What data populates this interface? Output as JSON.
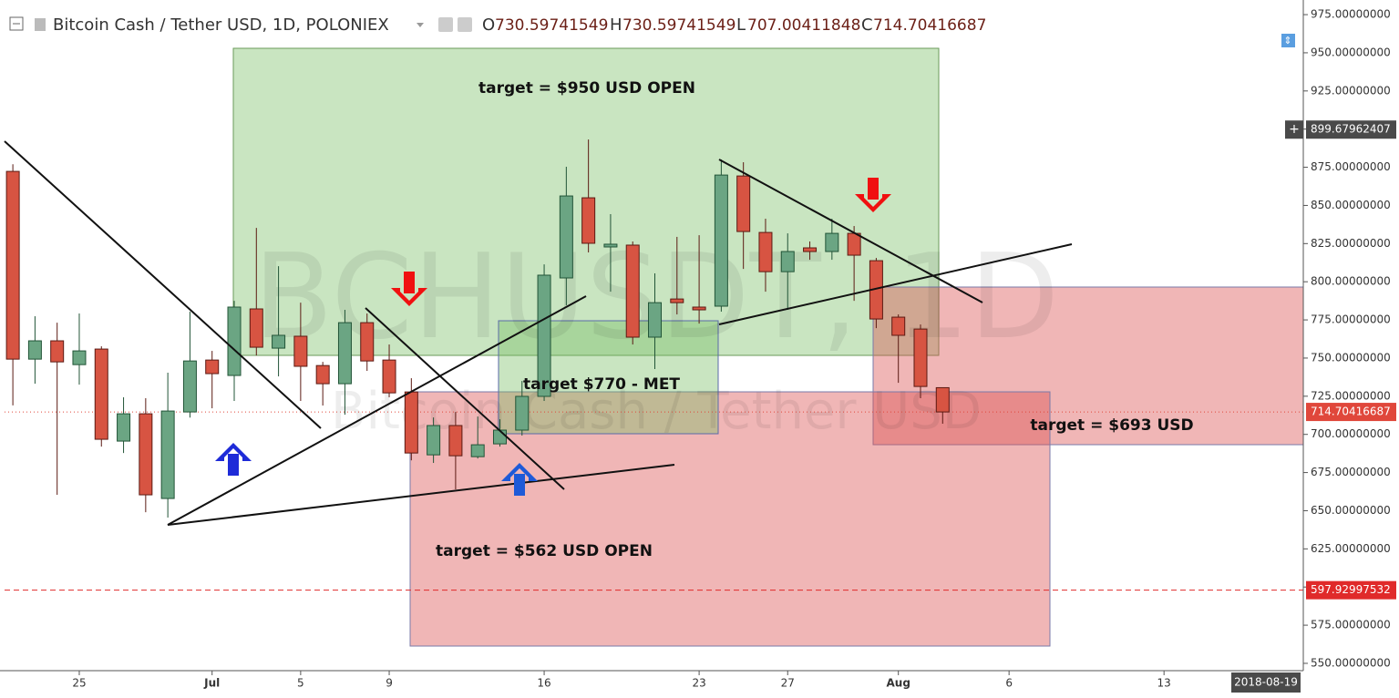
{
  "chart_data": {
    "type": "candlestick",
    "symbol": "Bitcoin Cash / Tether USD, 1D, POLONIEX",
    "ohlc_header": [
      {
        "label": "O",
        "value": "730.59741549"
      },
      {
        "label": "H",
        "value": "730.59741549"
      },
      {
        "label": "L",
        "value": "707.00411848"
      },
      {
        "label": "C",
        "value": "714.70416687"
      }
    ],
    "watermark": "BCHUSDT, 1D",
    "watermark_subtitle": "Bitcoin Cash / Tether USD",
    "x": [
      "2018-06-22",
      "2018-06-23",
      "2018-06-24",
      "2018-06-25",
      "2018-06-26",
      "2018-06-27",
      "2018-06-28",
      "2018-06-29",
      "2018-06-30",
      "2018-07-01",
      "2018-07-02",
      "2018-07-03",
      "2018-07-04",
      "2018-07-05",
      "2018-07-06",
      "2018-07-07",
      "2018-07-08",
      "2018-07-09",
      "2018-07-10",
      "2018-07-11",
      "2018-07-12",
      "2018-07-13",
      "2018-07-14",
      "2018-07-15",
      "2018-07-16",
      "2018-07-17",
      "2018-07-18",
      "2018-07-19",
      "2018-07-20",
      "2018-07-21",
      "2018-07-22",
      "2018-07-23",
      "2018-07-24",
      "2018-07-25",
      "2018-07-26",
      "2018-07-27",
      "2018-07-28",
      "2018-07-29",
      "2018-07-30",
      "2018-07-31",
      "2018-08-01",
      "2018-08-02",
      "2018-08-03"
    ],
    "open": [
      872.3,
      749.3,
      761.3,
      745.7,
      755.9,
      695.6,
      713.5,
      658.0,
      714.7,
      748.7,
      738.6,
      782.2,
      756.5,
      764.3,
      745.1,
      733.2,
      773.2,
      748.7,
      727.8,
      686.6,
      705.8,
      685.4,
      693.8,
      702.8,
      724.9,
      802.5,
      855.0,
      822.8,
      824.0,
      763.7,
      788.7,
      783.4,
      784.0,
      869.3,
      832.3,
      806.6,
      822.2,
      819.8,
      831.7,
      813.8,
      776.8,
      769.0,
      730.6
    ],
    "high": [
      877.0,
      777.4,
      773.2,
      779.2,
      757.7,
      724.3,
      723.7,
      740.4,
      780.4,
      754.7,
      787.5,
      835.3,
      810.2,
      786.3,
      747.5,
      781.6,
      779.2,
      758.9,
      736.8,
      711.1,
      714.7,
      711.7,
      709.9,
      735.0,
      811.4,
      875.3,
      893.2,
      844.3,
      826.4,
      805.5,
      829.4,
      830.5,
      880.1,
      878.3,
      841.3,
      831.7,
      826.4,
      841.3,
      836.5,
      815.6,
      778.6,
      772.0,
      730.6
    ],
    "low": [
      719.0,
      733.2,
      660.4,
      732.6,
      692.0,
      687.8,
      649.0,
      645.5,
      711.0,
      717.1,
      721.9,
      751.7,
      738.0,
      721.9,
      718.9,
      712.9,
      741.6,
      724.3,
      683.0,
      681.3,
      664.0,
      684.2,
      692.0,
      699.2,
      721.9,
      784.6,
      819.2,
      793.5,
      758.9,
      742.8,
      778.6,
      772.6,
      780.4,
      808.4,
      793.5,
      781.6,
      814.4,
      814.4,
      787.5,
      769.6,
      733.8,
      723.7,
      707.0
    ],
    "close": [
      749.3,
      761.3,
      747.5,
      754.7,
      696.8,
      713.5,
      660.4,
      715.3,
      748.1,
      739.8,
      783.4,
      757.1,
      764.9,
      744.6,
      733.2,
      773.2,
      748.1,
      727.2,
      687.8,
      705.8,
      686.0,
      693.2,
      702.8,
      724.9,
      804.3,
      856.2,
      825.2,
      824.6,
      763.7,
      786.3,
      786.3,
      781.6,
      869.9,
      832.9,
      806.6,
      819.8,
      819.8,
      831.7,
      817.4,
      775.6,
      764.9,
      731.4,
      714.7
    ],
    "up_color": "#6ba583",
    "down_color": "#d75442",
    "xlim": [
      "2018-06-21T15:00Z",
      "2018-08-19T07:00Z"
    ],
    "xticks": [
      {
        "value": "2018-06-25",
        "label": "25"
      },
      {
        "value": "2018-07-01",
        "label": "Jul"
      },
      {
        "value": "2018-07-05",
        "label": "5"
      },
      {
        "value": "2018-07-09",
        "label": "9"
      },
      {
        "value": "2018-07-16",
        "label": "16"
      },
      {
        "value": "2018-07-23",
        "label": "23"
      },
      {
        "value": "2018-07-27",
        "label": "27"
      },
      {
        "value": "2018-08-01",
        "label": "Aug"
      },
      {
        "value": "2018-08-06",
        "label": "6"
      },
      {
        "value": "2018-08-13",
        "label": "13"
      }
    ],
    "crosshair_date": "2018-08-19",
    "ylim": [
      545.8,
      981.6
    ],
    "yticks": [
      {
        "value": 550,
        "label": "550.00000000"
      },
      {
        "value": 575,
        "label": "575.00000000"
      },
      {
        "value": 600,
        "label": "600.00000000"
      },
      {
        "value": 625,
        "label": "625.00000000"
      },
      {
        "value": 650,
        "label": "650.00000000"
      },
      {
        "value": 675,
        "label": "675.00000000"
      },
      {
        "value": 700,
        "label": "700.00000000"
      },
      {
        "value": 725,
        "label": "725.00000000"
      },
      {
        "value": 750,
        "label": "750.00000000"
      },
      {
        "value": 775,
        "label": "775.00000000"
      },
      {
        "value": 800,
        "label": "800.00000000"
      },
      {
        "value": 825,
        "label": "825.00000000"
      },
      {
        "value": 850,
        "label": "850.00000000"
      },
      {
        "value": 875,
        "label": "875.00000000"
      },
      {
        "value": 900,
        "label": "900.00000000"
      },
      {
        "value": 925,
        "label": "925.00000000"
      },
      {
        "value": 950,
        "label": "950.00000000"
      },
      {
        "value": 975,
        "label": "975.00000000"
      }
    ],
    "price_markers": [
      {
        "value": 899.67962407,
        "label": "899.67962407",
        "color": "#4a4a4a",
        "line": "none"
      },
      {
        "value": 714.70416687,
        "label": "714.70416687",
        "color": "#e0473b",
        "line": "dotted"
      },
      {
        "value": 597.92997532,
        "label": "597.92997532",
        "color": "#e02a2a",
        "line": "dashed"
      }
    ],
    "annotations": [
      "target = $950 USD OPEN",
      "target $770 - MET",
      "target = $562 USD OPEN",
      "target = $693 USD"
    ],
    "grid": false
  }
}
